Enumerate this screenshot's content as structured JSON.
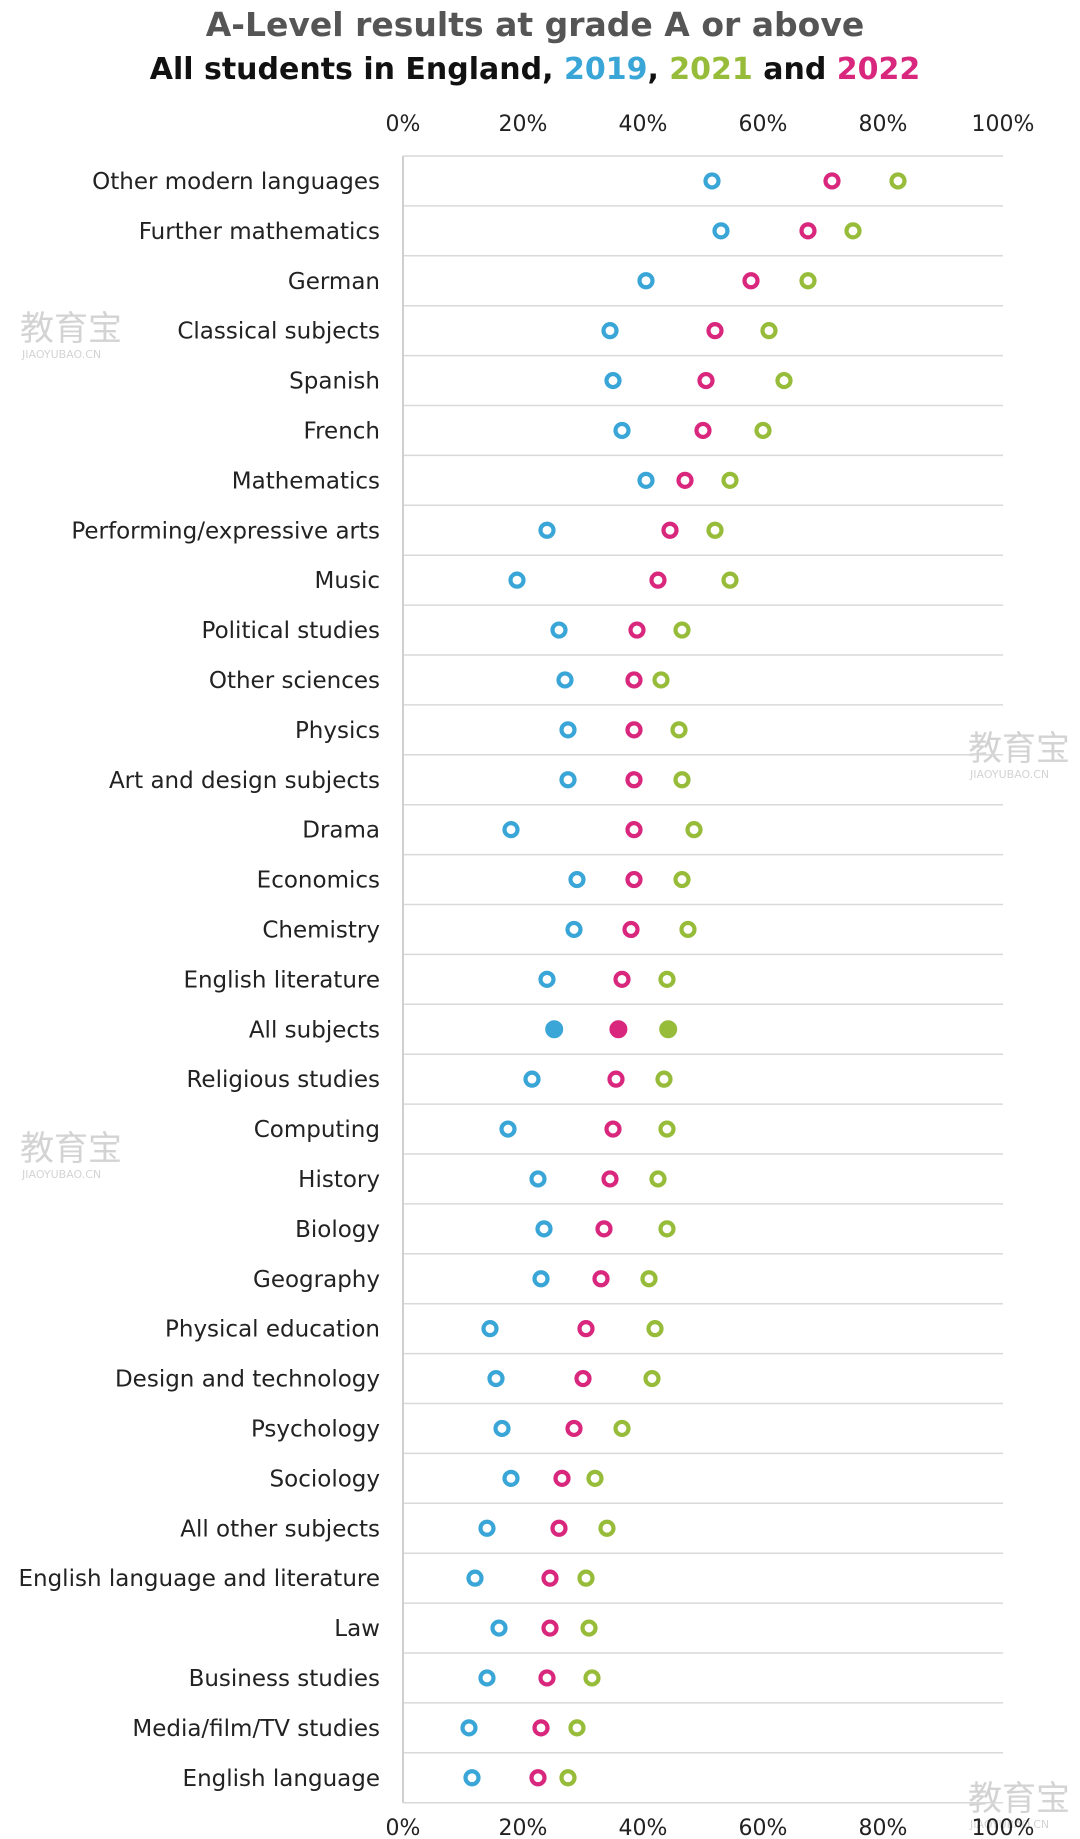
{
  "title": "A-Level results at grade A or above",
  "subtitle": {
    "prefix": "All students in England, ",
    "year_2019": "2019",
    "sep1": ", ",
    "year_2021": "2021",
    "sep2": " and ",
    "year_2022": "2022"
  },
  "watermark": {
    "main": "教育宝",
    "sub": "JIAOYUBAO.CN"
  },
  "colors": {
    "2019": "#3aa6d8",
    "2021": "#97bc3a",
    "2022": "#d8277d",
    "grid": "#d9d9d9",
    "axis": "#cfcfcf"
  },
  "chart_data": {
    "type": "scatter",
    "xlim": [
      0,
      100
    ],
    "x_ticks": [
      "0%",
      "20%",
      "40%",
      "60%",
      "80%",
      "100%"
    ],
    "grid": true,
    "highlight_category": "All subjects",
    "categories": [
      "Other modern languages",
      "Further mathematics",
      "German",
      "Classical subjects",
      "Spanish",
      "French",
      "Mathematics",
      "Performing/expressive arts",
      "Music",
      "Political studies",
      "Other sciences",
      "Physics",
      "Art and design subjects",
      "Drama",
      "Economics",
      "Chemistry",
      "English literature",
      "All subjects",
      "Religious studies",
      "Computing",
      "History",
      "Biology",
      "Geography",
      "Physical education",
      "Design and technology",
      "Psychology",
      "Sociology",
      "All other subjects",
      "English language and literature",
      "Law",
      "Business studies",
      "Media/film/TV studies",
      "English language"
    ],
    "series": [
      {
        "name": "2019",
        "values": [
          51.5,
          53,
          40.5,
          34.5,
          35,
          36.5,
          40.5,
          24,
          19,
          26,
          27,
          27.5,
          27.5,
          18,
          29,
          28.5,
          24,
          25.2,
          21.5,
          17.5,
          22.5,
          23.5,
          23,
          14.5,
          15.5,
          16.5,
          18,
          14,
          12,
          16,
          14,
          11,
          11.5
        ]
      },
      {
        "name": "2021",
        "values": [
          82.5,
          75,
          67.5,
          61,
          63.5,
          60,
          54.5,
          52,
          54.5,
          46.5,
          43,
          46,
          46.5,
          48.5,
          46.5,
          47.5,
          44,
          44.2,
          43.5,
          44,
          42.5,
          44,
          41,
          42,
          41.5,
          36.5,
          32,
          34,
          30.5,
          31,
          31.5,
          29,
          27.5
        ]
      },
      {
        "name": "2022",
        "values": [
          71.5,
          67.5,
          58,
          52,
          50.5,
          50,
          47,
          44.5,
          42.5,
          39,
          38.5,
          38.5,
          38.5,
          38.5,
          38.5,
          38,
          36.5,
          35.9,
          35.5,
          35,
          34.5,
          33.5,
          33,
          30.5,
          30,
          28.5,
          26.5,
          26,
          24.5,
          24.5,
          24,
          23,
          22.5
        ]
      }
    ]
  }
}
